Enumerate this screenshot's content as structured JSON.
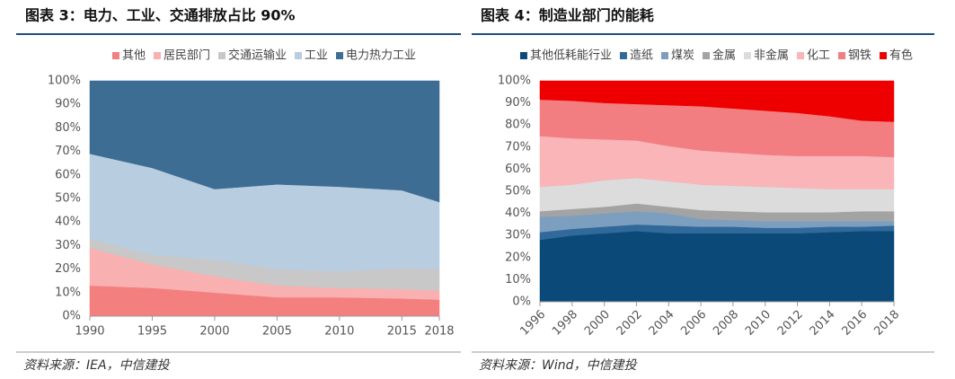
{
  "chart_data": [
    {
      "type": "stacked_area",
      "title": "图表 3：电力、工业、交通排放占比 90%",
      "source": "资料来源：IEA，中信建投",
      "x": [
        1990,
        1995,
        2000,
        2005,
        2010,
        2015,
        2018
      ],
      "xlim": [
        1990,
        2018
      ],
      "xticks": [
        1990,
        1995,
        2000,
        2005,
        2010,
        2015,
        2018
      ],
      "xtick_rotation": 0,
      "ylim": [
        0,
        100
      ],
      "yticks": [
        {
          "value": 0,
          "label": "0%"
        },
        {
          "value": 10,
          "label": "10%"
        },
        {
          "value": 20,
          "label": "20%"
        },
        {
          "value": 30,
          "label": "30%"
        },
        {
          "value": 40,
          "label": "40%"
        },
        {
          "value": 50,
          "label": "50%"
        },
        {
          "value": 60,
          "label": "60%"
        },
        {
          "value": 70,
          "label": "70%"
        },
        {
          "value": 80,
          "label": "80%"
        },
        {
          "value": 90,
          "label": "90%"
        },
        {
          "value": 100,
          "label": "100%"
        }
      ],
      "grid": false,
      "legend": "top",
      "series": [
        {
          "name": "其他",
          "color": "#f47f7f",
          "values": [
            13,
            12,
            10,
            8,
            8,
            7.5,
            7
          ]
        },
        {
          "name": "居民部门",
          "color": "#f9b0b0",
          "values": [
            16,
            10,
            7,
            5,
            4,
            4,
            4
          ]
        },
        {
          "name": "交通运输业",
          "color": "#c8c8c8",
          "values": [
            4,
            4,
            7,
            7,
            7,
            9,
            9
          ]
        },
        {
          "name": "工业",
          "color": "#b8cde0",
          "values": [
            36,
            37,
            30,
            36,
            36,
            33,
            28.5
          ]
        },
        {
          "name": "电力热力工业",
          "color": "#3d6d93",
          "values": [
            31,
            37,
            46,
            44,
            45,
            46.5,
            51.5
          ]
        }
      ]
    },
    {
      "type": "stacked_area",
      "title": "图表 4：制造业部门的能耗",
      "source": "资料来源：Wind，中信建投",
      "x": [
        1996,
        1998,
        2000,
        2002,
        2004,
        2006,
        2008,
        2010,
        2012,
        2014,
        2016,
        2018
      ],
      "xlim": [
        1996,
        2018
      ],
      "xticks": [
        1996,
        1998,
        2000,
        2002,
        2004,
        2006,
        2008,
        2010,
        2012,
        2014,
        2016,
        2018
      ],
      "xtick_rotation": -45,
      "ylim": [
        0,
        100
      ],
      "yticks": [
        {
          "value": 0,
          "label": "0%"
        },
        {
          "value": 10,
          "label": "10%"
        },
        {
          "value": 20,
          "label": "20%"
        },
        {
          "value": 30,
          "label": "30%"
        },
        {
          "value": 40,
          "label": "40%"
        },
        {
          "value": 50,
          "label": "50%"
        },
        {
          "value": 60,
          "label": "60%"
        },
        {
          "value": 70,
          "label": "70%"
        },
        {
          "value": 80,
          "label": "80%"
        },
        {
          "value": 90,
          "label": "90%"
        },
        {
          "value": 100,
          "label": "100%"
        }
      ],
      "grid": false,
      "legend": "top",
      "series": [
        {
          "name": "其他低耗能行业",
          "color": "#0b4a78",
          "values": [
            28,
            30,
            31,
            32,
            31,
            31,
            31,
            31,
            31,
            31.5,
            32,
            32
          ]
        },
        {
          "name": "造纸",
          "color": "#30699a",
          "values": [
            3.5,
            3,
            3,
            3,
            3.5,
            3,
            3,
            2.5,
            2.5,
            2.5,
            2,
            2.5
          ]
        },
        {
          "name": "煤炭",
          "color": "#7d9fbf",
          "values": [
            7,
            6,
            6,
            6,
            5.5,
            3.5,
            3,
            3,
            3,
            2.5,
            2.5,
            2
          ]
        },
        {
          "name": "金属",
          "color": "#a3a3a3",
          "values": [
            2.5,
            3,
            3,
            3.5,
            3,
            4,
            4,
            4,
            4,
            4,
            4.5,
            4.5
          ]
        },
        {
          "name": "非金属",
          "color": "#dcdcdc",
          "values": [
            11,
            11,
            12,
            11.5,
            11.5,
            11.5,
            11.5,
            11.5,
            11,
            10.5,
            10,
            10
          ]
        },
        {
          "name": "化工",
          "color": "#f9b5b8",
          "values": [
            23,
            21,
            18.5,
            17,
            16,
            15.5,
            15,
            14.5,
            14.5,
            15,
            15,
            14.5
          ]
        },
        {
          "name": "钢铁",
          "color": "#f27e82",
          "values": [
            16.5,
            17,
            16.5,
            16.5,
            18.5,
            20,
            20,
            20,
            19.5,
            18,
            16,
            16
          ]
        },
        {
          "name": "有色",
          "color": "#ee0000",
          "values": [
            8.5,
            9,
            10,
            10.5,
            11,
            11.5,
            12.5,
            13.5,
            14.5,
            16,
            18,
            18.5
          ]
        }
      ]
    }
  ]
}
